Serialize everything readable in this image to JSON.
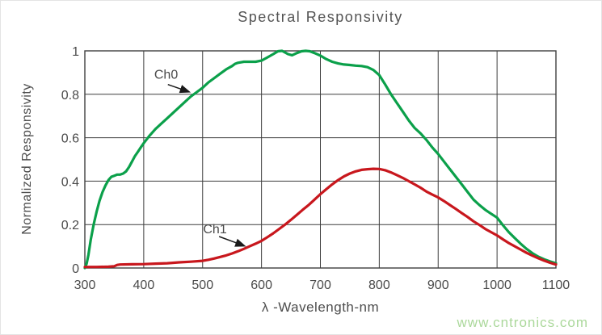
{
  "page": {
    "background": "#ffffff",
    "border_color": "#e4e4e4"
  },
  "watermark": {
    "text": "www.cntronics.com",
    "color": "#abd89b"
  },
  "chart_data": {
    "type": "line",
    "title": "Spectral Responsivity",
    "xlabel": "λ -Wavelength-nm",
    "ylabel": "Normalized Responsivity",
    "xlim": [
      300,
      1100
    ],
    "ylim": [
      0,
      1
    ],
    "x_ticks": [
      300,
      400,
      500,
      600,
      700,
      800,
      900,
      1000,
      1100
    ],
    "x_tick_labels": [
      "300",
      "400",
      "500",
      "600",
      "700",
      "800",
      "900",
      "1000",
      "1100"
    ],
    "y_ticks": [
      0,
      0.2,
      0.4,
      0.6,
      0.8,
      1
    ],
    "y_tick_labels": [
      "0",
      "0.2",
      "0.4",
      "0.6",
      "0.8",
      "1"
    ],
    "grid": true,
    "grid_color": "#3f3f3f",
    "tick_label_color": "#4a4a4a",
    "legend_position": "none",
    "series": [
      {
        "name": "Ch0",
        "color": "#0ba04a",
        "points": [
          [
            300,
            0.0
          ],
          [
            303,
            0.02
          ],
          [
            306,
            0.06
          ],
          [
            310,
            0.13
          ],
          [
            315,
            0.2
          ],
          [
            320,
            0.26
          ],
          [
            325,
            0.31
          ],
          [
            330,
            0.35
          ],
          [
            335,
            0.38
          ],
          [
            340,
            0.405
          ],
          [
            345,
            0.42
          ],
          [
            350,
            0.425
          ],
          [
            355,
            0.43
          ],
          [
            360,
            0.43
          ],
          [
            365,
            0.435
          ],
          [
            370,
            0.445
          ],
          [
            375,
            0.465
          ],
          [
            380,
            0.49
          ],
          [
            385,
            0.515
          ],
          [
            390,
            0.535
          ],
          [
            395,
            0.555
          ],
          [
            400,
            0.575
          ],
          [
            410,
            0.61
          ],
          [
            420,
            0.64
          ],
          [
            430,
            0.665
          ],
          [
            440,
            0.69
          ],
          [
            450,
            0.715
          ],
          [
            460,
            0.74
          ],
          [
            470,
            0.765
          ],
          [
            480,
            0.79
          ],
          [
            490,
            0.81
          ],
          [
            500,
            0.83
          ],
          [
            510,
            0.855
          ],
          [
            520,
            0.875
          ],
          [
            530,
            0.895
          ],
          [
            540,
            0.915
          ],
          [
            550,
            0.93
          ],
          [
            555,
            0.94
          ],
          [
            560,
            0.945
          ],
          [
            570,
            0.95
          ],
          [
            580,
            0.95
          ],
          [
            590,
            0.95
          ],
          [
            600,
            0.955
          ],
          [
            610,
            0.97
          ],
          [
            620,
            0.985
          ],
          [
            628,
            0.998
          ],
          [
            635,
            1.0
          ],
          [
            645,
            0.985
          ],
          [
            652,
            0.98
          ],
          [
            660,
            0.99
          ],
          [
            668,
            0.998
          ],
          [
            675,
            1.0
          ],
          [
            682,
            0.998
          ],
          [
            690,
            0.99
          ],
          [
            700,
            0.978
          ],
          [
            710,
            0.962
          ],
          [
            720,
            0.95
          ],
          [
            730,
            0.942
          ],
          [
            740,
            0.937
          ],
          [
            750,
            0.935
          ],
          [
            760,
            0.932
          ],
          [
            770,
            0.93
          ],
          [
            780,
            0.925
          ],
          [
            790,
            0.912
          ],
          [
            800,
            0.888
          ],
          [
            810,
            0.845
          ],
          [
            820,
            0.8
          ],
          [
            830,
            0.76
          ],
          [
            840,
            0.72
          ],
          [
            850,
            0.68
          ],
          [
            860,
            0.645
          ],
          [
            870,
            0.62
          ],
          [
            880,
            0.59
          ],
          [
            890,
            0.555
          ],
          [
            900,
            0.525
          ],
          [
            910,
            0.49
          ],
          [
            920,
            0.455
          ],
          [
            930,
            0.42
          ],
          [
            940,
            0.385
          ],
          [
            950,
            0.35
          ],
          [
            960,
            0.315
          ],
          [
            970,
            0.29
          ],
          [
            980,
            0.268
          ],
          [
            990,
            0.25
          ],
          [
            1000,
            0.232
          ],
          [
            1010,
            0.197
          ],
          [
            1020,
            0.165
          ],
          [
            1030,
            0.138
          ],
          [
            1040,
            0.112
          ],
          [
            1050,
            0.088
          ],
          [
            1060,
            0.068
          ],
          [
            1070,
            0.052
          ],
          [
            1080,
            0.04
          ],
          [
            1090,
            0.03
          ],
          [
            1100,
            0.022
          ]
        ]
      },
      {
        "name": "Ch1",
        "color": "#c8171d",
        "points": [
          [
            300,
            0.005
          ],
          [
            320,
            0.005
          ],
          [
            340,
            0.006
          ],
          [
            350,
            0.008
          ],
          [
            355,
            0.014
          ],
          [
            360,
            0.016
          ],
          [
            380,
            0.017
          ],
          [
            400,
            0.018
          ],
          [
            420,
            0.02
          ],
          [
            440,
            0.022
          ],
          [
            460,
            0.026
          ],
          [
            480,
            0.029
          ],
          [
            500,
            0.033
          ],
          [
            510,
            0.038
          ],
          [
            520,
            0.044
          ],
          [
            530,
            0.051
          ],
          [
            540,
            0.058
          ],
          [
            550,
            0.067
          ],
          [
            560,
            0.077
          ],
          [
            570,
            0.088
          ],
          [
            580,
            0.1
          ],
          [
            590,
            0.112
          ],
          [
            600,
            0.125
          ],
          [
            610,
            0.142
          ],
          [
            620,
            0.16
          ],
          [
            630,
            0.18
          ],
          [
            640,
            0.2
          ],
          [
            650,
            0.222
          ],
          [
            660,
            0.245
          ],
          [
            670,
            0.268
          ],
          [
            680,
            0.29
          ],
          [
            690,
            0.315
          ],
          [
            700,
            0.34
          ],
          [
            710,
            0.363
          ],
          [
            720,
            0.385
          ],
          [
            730,
            0.405
          ],
          [
            740,
            0.422
          ],
          [
            750,
            0.435
          ],
          [
            760,
            0.445
          ],
          [
            770,
            0.452
          ],
          [
            780,
            0.455
          ],
          [
            790,
            0.457
          ],
          [
            800,
            0.456
          ],
          [
            810,
            0.45
          ],
          [
            820,
            0.44
          ],
          [
            830,
            0.428
          ],
          [
            840,
            0.415
          ],
          [
            850,
            0.4
          ],
          [
            860,
            0.385
          ],
          [
            870,
            0.37
          ],
          [
            880,
            0.352
          ],
          [
            890,
            0.338
          ],
          [
            900,
            0.325
          ],
          [
            910,
            0.308
          ],
          [
            920,
            0.29
          ],
          [
            930,
            0.272
          ],
          [
            940,
            0.253
          ],
          [
            950,
            0.235
          ],
          [
            960,
            0.215
          ],
          [
            970,
            0.198
          ],
          [
            980,
            0.18
          ],
          [
            990,
            0.165
          ],
          [
            1000,
            0.15
          ],
          [
            1010,
            0.132
          ],
          [
            1020,
            0.115
          ],
          [
            1030,
            0.1
          ],
          [
            1040,
            0.085
          ],
          [
            1050,
            0.07
          ],
          [
            1060,
            0.057
          ],
          [
            1070,
            0.045
          ],
          [
            1080,
            0.034
          ],
          [
            1090,
            0.024
          ],
          [
            1100,
            0.016
          ]
        ]
      }
    ],
    "annotations": [
      {
        "label": "Ch0",
        "label_x": 438,
        "label_v": 0.89,
        "arrow_x1": 441,
        "arrow_v1": 0.845,
        "arrow_x2": 476,
        "arrow_v2": 0.812
      },
      {
        "label": "Ch1",
        "label_x": 521,
        "label_v": 0.178,
        "arrow_x1": 528,
        "arrow_v1": 0.145,
        "arrow_x2": 570,
        "arrow_v2": 0.103
      }
    ],
    "annotation_color": "#4a4a4a"
  }
}
